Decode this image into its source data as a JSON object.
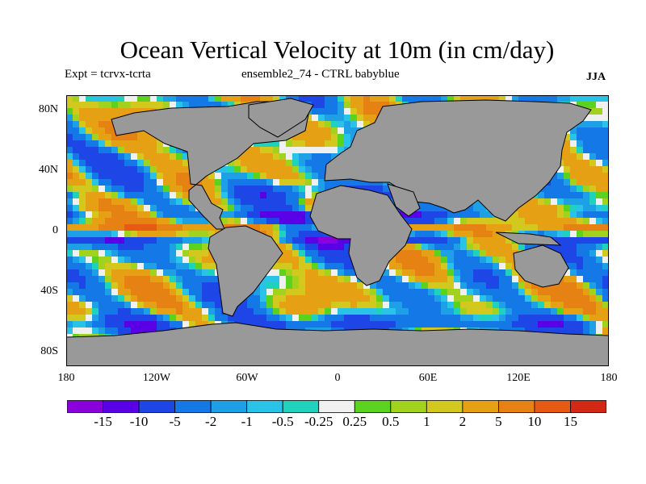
{
  "title": "Ocean Vertical Velocity at 10m (in cm/day)",
  "experiment_label": "Expt = tcrvx-tcrta",
  "ensemble_label": "ensemble2_74 - CTRL babyblue",
  "season_label": "JJA",
  "map": {
    "projection": "cylindrical equidistant",
    "lon_range": [
      -180,
      180
    ],
    "lat_range": [
      -90,
      90
    ],
    "land_color": "#999999",
    "y_ticks": [
      "80N",
      "40N",
      "0",
      "40S",
      "80S"
    ],
    "x_ticks": [
      "180",
      "120W",
      "60W",
      "0",
      "60E",
      "120E",
      "180"
    ]
  },
  "colorbar": {
    "labels": [
      "-15",
      "-10",
      "-5",
      "-2",
      "-1",
      "-0.5",
      "-0.25",
      "0.25",
      "0.5",
      "1",
      "2",
      "5",
      "10",
      "15"
    ],
    "colors": [
      "#8a00dc",
      "#5a00e6",
      "#1e46e6",
      "#1478e6",
      "#1ea0e6",
      "#28c3e6",
      "#1ed2be",
      "#f0f0f0",
      "#5ad21e",
      "#a0d21e",
      "#d2c81e",
      "#e6a014",
      "#e68214",
      "#e65a14",
      "#d22814"
    ]
  }
}
